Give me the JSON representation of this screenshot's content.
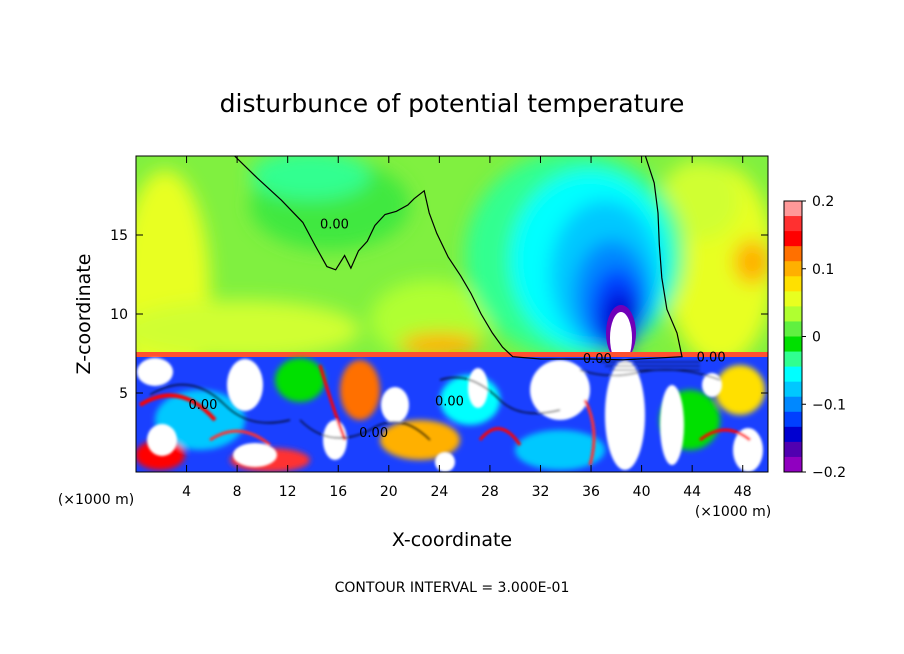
{
  "chart_data": {
    "type": "heatmap",
    "title": "disturbunce of potential temperature",
    "xlabel": "X-coordinate",
    "ylabel": "Z-coordinate",
    "x_unit": "(×1000 m)",
    "xlim": [
      0,
      50
    ],
    "ylim": [
      0,
      20
    ],
    "x_ticks": [
      4,
      8,
      12,
      16,
      20,
      24,
      28,
      32,
      36,
      40,
      44,
      48
    ],
    "y_ticks": [
      5,
      10,
      15
    ],
    "footer": "CONTOUR INTERVAL = 3.000E-01",
    "colorbar": {
      "range": [
        -0.2,
        0.2
      ],
      "tick_values": [
        0.2,
        0.1,
        0,
        -0.1,
        -0.2
      ],
      "tick_labels": [
        "0.2",
        "0.1",
        "0",
        "−0.1",
        "−0.2"
      ],
      "colors": [
        "#ff9999",
        "#ff3030",
        "#ff0000",
        "#ff7000",
        "#ffb000",
        "#ffe000",
        "#e8ff20",
        "#b0ff30",
        "#60f040",
        "#00e000",
        "#30ff90",
        "#00ffff",
        "#00c8ff",
        "#0088ff",
        "#0040ff",
        "#0000d0",
        "#5000b0",
        "#9000c0"
      ]
    },
    "contour_labels": [
      {
        "text": "0.00",
        "x": 15.7,
        "z": 15.4
      },
      {
        "text": "0.00",
        "x": 5.3,
        "z": 4.0
      },
      {
        "text": "0.00",
        "x": 18.8,
        "z": 2.2
      },
      {
        "text": "0.00",
        "x": 24.8,
        "z": 4.2
      },
      {
        "text": "0.00",
        "x": 36.5,
        "z": 6.9
      },
      {
        "text": "0.00",
        "x": 45.5,
        "z": 7.0
      }
    ],
    "zero_contour": [
      [
        7.8,
        20
      ],
      [
        9.6,
        18.6
      ],
      [
        11.5,
        17.2
      ],
      [
        13.2,
        15.8
      ],
      [
        14.2,
        14.3
      ],
      [
        15.1,
        13.0
      ],
      [
        15.8,
        12.8
      ],
      [
        16.5,
        13.7
      ],
      [
        17.0,
        12.9
      ],
      [
        17.6,
        14.0
      ],
      [
        18.3,
        14.6
      ],
      [
        18.9,
        15.6
      ],
      [
        19.7,
        16.3
      ],
      [
        20.6,
        16.5
      ],
      [
        21.5,
        16.9
      ],
      [
        22.0,
        17.3
      ],
      [
        22.8,
        17.8
      ],
      [
        23.2,
        16.4
      ],
      [
        23.8,
        15.1
      ],
      [
        24.7,
        13.6
      ],
      [
        25.7,
        12.4
      ],
      [
        26.5,
        11.3
      ],
      [
        27.3,
        10.0
      ],
      [
        28.2,
        8.8
      ],
      [
        29.0,
        7.9
      ],
      [
        29.8,
        7.3
      ],
      [
        32,
        7.15
      ],
      [
        36,
        7.15
      ],
      [
        38.5,
        7.1
      ],
      [
        41,
        7.2
      ],
      [
        43.2,
        7.3
      ],
      [
        42.8,
        8.8
      ],
      [
        42.0,
        10.3
      ],
      [
        41.6,
        12.3
      ],
      [
        41.4,
        14.4
      ],
      [
        41.3,
        16.4
      ],
      [
        41.0,
        18.3
      ],
      [
        40.3,
        20
      ]
    ]
  }
}
